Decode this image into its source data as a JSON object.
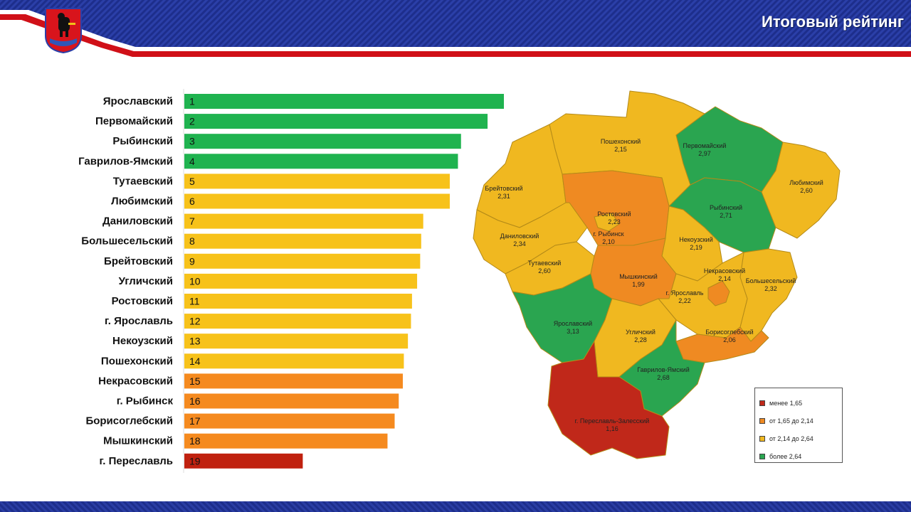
{
  "header": {
    "title": "Итоговый рейтинг",
    "brand_color": "#1d2e8c",
    "stripe_color": "#d01018"
  },
  "emblem": {
    "icon": "yaroslavl-coat-of-arms"
  },
  "chart_data": [
    {
      "type": "bar",
      "orientation": "horizontal",
      "categories": [
        "Ярославский",
        "Первомайский",
        "Рыбинский",
        "Гаврилов-Ямский",
        "Тутаевский",
        "Любимский",
        "Даниловский",
        "Большесельский",
        "Брейтовский",
        "Угличский",
        "Ростовский",
        "г. Ярославль",
        "Некоузский",
        "Пошехонский",
        "Некрасовский",
        "г. Рыбинск",
        "Борисоглебский",
        "Мышкинский",
        "г. Переславль"
      ],
      "ranks": [
        "1",
        "2",
        "3",
        "4",
        "5",
        "6",
        "7",
        "8",
        "9",
        "10",
        "11",
        "12",
        "13",
        "14",
        "15",
        "16",
        "17",
        "18",
        "19"
      ],
      "values": [
        3.13,
        2.97,
        2.71,
        2.68,
        2.6,
        2.6,
        2.34,
        2.32,
        2.31,
        2.28,
        2.23,
        2.22,
        2.19,
        2.15,
        2.14,
        2.1,
        2.06,
        1.99,
        1.16
      ],
      "bar_colors": [
        "#1fb34f",
        "#1fb34f",
        "#1fb34f",
        "#1fb34f",
        "#f7c21a",
        "#f7c21a",
        "#f7c21a",
        "#f7c21a",
        "#f7c21a",
        "#f7c21a",
        "#f7c21a",
        "#f7c21a",
        "#f7c21a",
        "#f7c21a",
        "#f58a1f",
        "#f58a1f",
        "#f58a1f",
        "#f58a1f",
        "#c0210f"
      ],
      "xlim": [
        0,
        3.13
      ],
      "axes_visible": false
    },
    {
      "type": "choropleth",
      "regions": [
        {
          "name": "Пошехонский",
          "value": "2,15",
          "color": "#f0b820"
        },
        {
          "name": "Первомайский",
          "value": "2,97",
          "color": "#2aa550"
        },
        {
          "name": "Брейтовский",
          "value": "2,31",
          "color": "#f0b820"
        },
        {
          "name": "Любимский",
          "value": "2,60",
          "color": "#f0b820"
        },
        {
          "name": "г. Рыбинск",
          "value": "2,10",
          "color": "#ef8a22"
        },
        {
          "name": "Рыбинский",
          "value": "2,71",
          "color": "#2aa550"
        },
        {
          "name": "Даниловский",
          "value": "2,34",
          "color": "#f0b820"
        },
        {
          "name": "Некоузский",
          "value": "2,19",
          "color": "#f0b820"
        },
        {
          "name": "Тутаевский",
          "value": "2,60",
          "color": "#f0b820"
        },
        {
          "name": "Мышкинский",
          "value": "1,99",
          "color": "#ef8a22"
        },
        {
          "name": "Большесельский",
          "value": "2,32",
          "color": "#f0b820"
        },
        {
          "name": "г. Ярославль",
          "value": "2,22",
          "color": "#f0b820"
        },
        {
          "name": "Некрасовский",
          "value": "2,14",
          "color": "#ef8a22"
        },
        {
          "name": "Ярославский",
          "value": "3,13",
          "color": "#2aa550"
        },
        {
          "name": "Угличский",
          "value": "2,28",
          "color": "#f0b820"
        },
        {
          "name": "Борисоглебский",
          "value": "2,06",
          "color": "#ef8a22"
        },
        {
          "name": "Гаврилов-Ямский",
          "value": "2,68",
          "color": "#2aa550"
        },
        {
          "name": "Ростовский",
          "value": "2,23",
          "color": "#f0b820"
        },
        {
          "name": "г. Переславль-Залесский",
          "value": "1,16",
          "color": "#c0281a"
        }
      ],
      "legend": [
        {
          "label": "менее 1,65",
          "color": "#c0281a"
        },
        {
          "label": "от 1,65 до 2,14",
          "color": "#ef8a22"
        },
        {
          "label": "от 2,14 до 2,64",
          "color": "#f0b820"
        },
        {
          "label": "более 2,64",
          "color": "#2aa550"
        }
      ],
      "legend_position": "bottom-right"
    }
  ]
}
